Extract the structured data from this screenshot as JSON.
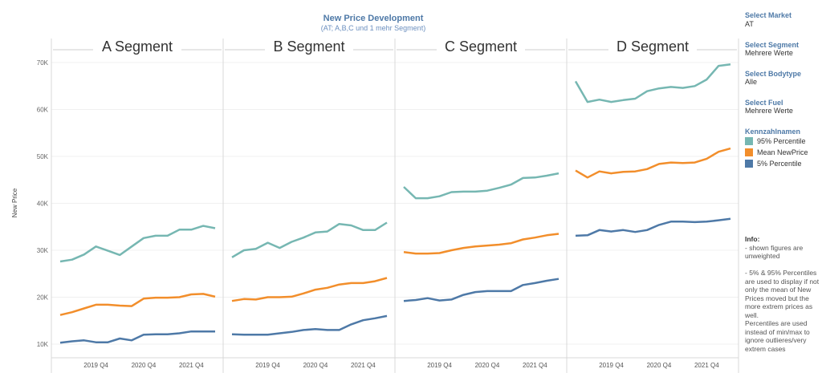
{
  "title": "New Price Development",
  "subtitle": "(AT; A,B,C und 1 mehr Segment)",
  "filters": [
    {
      "label": "Select Market",
      "value": "AT"
    },
    {
      "label": "Select Segment",
      "value": "Mehrere Werte"
    },
    {
      "label": "Select Bodytype",
      "value": "Alle"
    },
    {
      "label": "Select Fuel",
      "value": "Mehrere Werte"
    }
  ],
  "legend": {
    "title": "Kennzahlnamen",
    "items": [
      {
        "label": "95% Percentile",
        "color": "#76b7b2"
      },
      {
        "label": "Mean NewPrice",
        "color": "#f28e2b"
      },
      {
        "label": "5% Percentile",
        "color": "#4e79a7"
      }
    ]
  },
  "info": {
    "title": "Info:",
    "text": "- shown figures are unweighted\n\n- 5% & 95% Percentiles are used to display if not only the mean of New Prices moved but the more extrem prices as well.\nPercentiles are used instead of min/max to ignore outlieres/very extrem cases"
  },
  "chart_data": {
    "type": "line",
    "title": "New Price Development",
    "subtitle": "(AT; A,B,C und 1 mehr Segment)",
    "ylabel": "New Price",
    "ylim": [
      7,
      72
    ],
    "yticks": [
      10,
      20,
      30,
      40,
      50,
      60,
      70
    ],
    "ytick_labels": [
      "10K",
      "20K",
      "30K",
      "40K",
      "50K",
      "60K",
      "70K"
    ],
    "x": [
      "2019 Q1",
      "2019 Q2",
      "2019 Q3",
      "2019 Q4",
      "2020 Q1",
      "2020 Q2",
      "2020 Q3",
      "2020 Q4",
      "2021 Q1",
      "2021 Q2",
      "2021 Q3",
      "2021 Q4",
      "2022 Q1",
      "2022 Q2"
    ],
    "xtick_labels": [
      "2019 Q4",
      "2020 Q4",
      "2021 Q4"
    ],
    "grid": true,
    "legend_position": "right",
    "panels": [
      {
        "name": "A Segment",
        "series": [
          {
            "name": "95% Percentile",
            "values": [
              27.6,
              28.0,
              29.1,
              30.8,
              29.9,
              29.0,
              30.8,
              32.6,
              33.1,
              33.1,
              34.4,
              34.4,
              35.2,
              34.7
            ]
          },
          {
            "name": "Mean NewPrice",
            "values": [
              16.2,
              16.8,
              17.6,
              18.4,
              18.4,
              18.2,
              18.1,
              19.7,
              19.9,
              19.9,
              20.0,
              20.6,
              20.7,
              20.1
            ]
          },
          {
            "name": "5% Percentile",
            "values": [
              10.3,
              10.6,
              10.8,
              10.4,
              10.4,
              11.2,
              10.8,
              12.0,
              12.1,
              12.1,
              12.3,
              12.7,
              12.7,
              12.7
            ]
          }
        ]
      },
      {
        "name": "B Segment",
        "series": [
          {
            "name": "95% Percentile",
            "values": [
              28.5,
              30.0,
              30.3,
              31.6,
              30.5,
              31.8,
              32.7,
              33.8,
              34.0,
              35.6,
              35.3,
              34.3,
              34.3,
              35.9
            ]
          },
          {
            "name": "Mean NewPrice",
            "values": [
              19.2,
              19.6,
              19.5,
              20.0,
              20.0,
              20.1,
              20.8,
              21.6,
              22.0,
              22.7,
              23.0,
              23.0,
              23.4,
              24.1
            ]
          },
          {
            "name": "5% Percentile",
            "values": [
              12.1,
              12.0,
              12.0,
              12.0,
              12.3,
              12.6,
              13.0,
              13.2,
              13.0,
              13.0,
              14.2,
              15.1,
              15.5,
              16.0
            ]
          }
        ]
      },
      {
        "name": "C Segment",
        "series": [
          {
            "name": "95% Percentile",
            "values": [
              43.5,
              41.1,
              41.1,
              41.5,
              42.4,
              42.5,
              42.5,
              42.7,
              43.3,
              44.0,
              45.4,
              45.5,
              45.9,
              46.4
            ]
          },
          {
            "name": "Mean NewPrice",
            "values": [
              29.6,
              29.3,
              29.3,
              29.4,
              30.0,
              30.5,
              30.8,
              31.0,
              31.2,
              31.5,
              32.3,
              32.7,
              33.2,
              33.5
            ]
          },
          {
            "name": "5% Percentile",
            "values": [
              19.2,
              19.4,
              19.8,
              19.3,
              19.5,
              20.5,
              21.1,
              21.3,
              21.3,
              21.3,
              22.6,
              23.0,
              23.5,
              23.9
            ]
          }
        ]
      },
      {
        "name": "D Segment",
        "series": [
          {
            "name": "95% Percentile",
            "values": [
              66.0,
              61.6,
              62.1,
              61.6,
              62.0,
              62.3,
              63.9,
              64.5,
              64.8,
              64.6,
              65.0,
              66.4,
              69.3,
              69.6
            ]
          },
          {
            "name": "Mean NewPrice",
            "values": [
              47.0,
              45.5,
              46.8,
              46.4,
              46.7,
              46.8,
              47.3,
              48.4,
              48.7,
              48.6,
              48.7,
              49.5,
              51.0,
              51.7
            ]
          },
          {
            "name": "5% Percentile",
            "values": [
              33.1,
              33.2,
              34.3,
              34.0,
              34.3,
              33.9,
              34.3,
              35.4,
              36.1,
              36.1,
              36.0,
              36.1,
              36.4,
              36.7
            ]
          }
        ]
      }
    ]
  }
}
